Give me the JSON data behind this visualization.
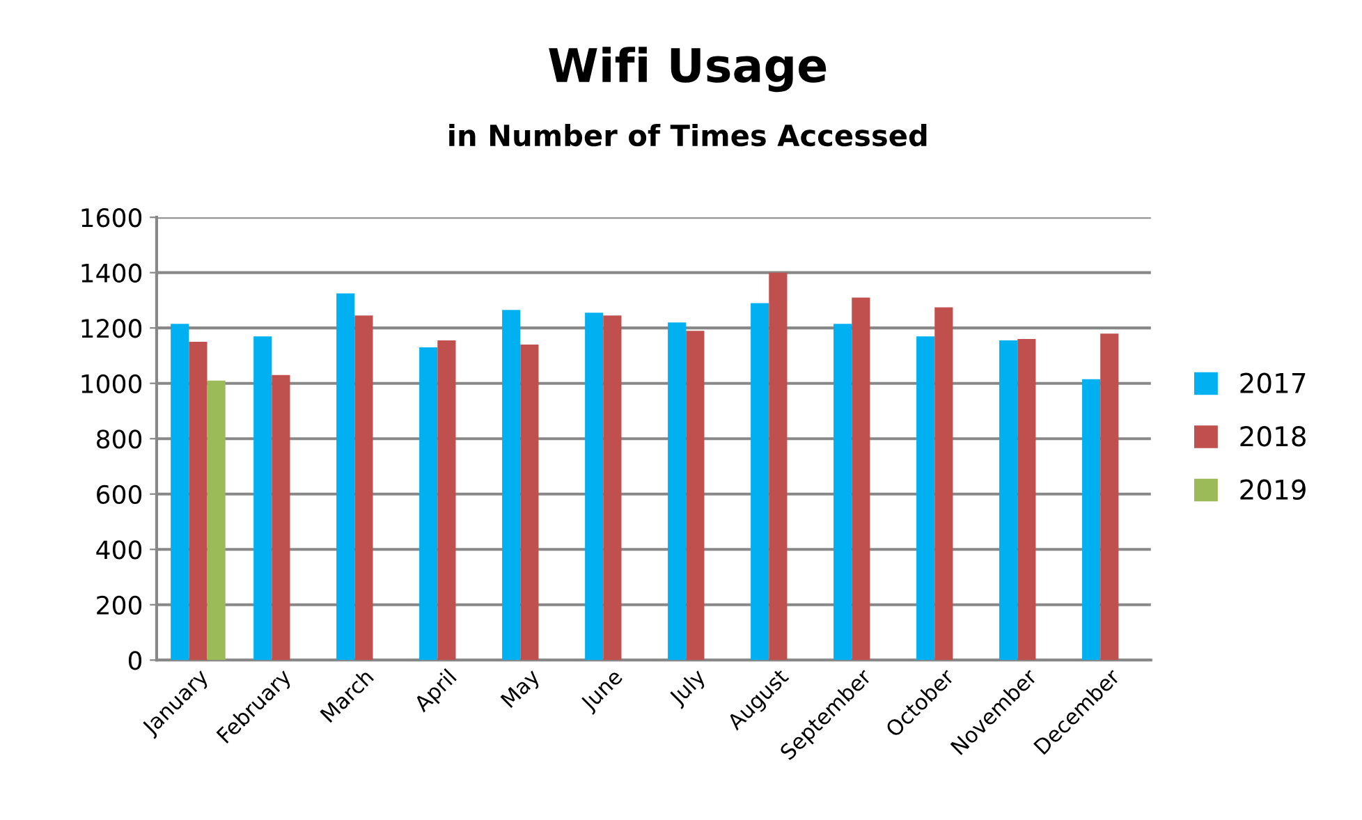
{
  "chart_data": {
    "type": "bar",
    "title": "Wifi Usage",
    "subtitle": "in Number of Times Accessed",
    "categories": [
      "January",
      "February",
      "March",
      "April",
      "May",
      "June",
      "July",
      "August",
      "September",
      "October",
      "November",
      "December"
    ],
    "series": [
      {
        "name": "2017",
        "color": "#00b0f0",
        "values": [
          1215,
          1170,
          1325,
          1130,
          1265,
          1255,
          1220,
          1290,
          1215,
          1170,
          1155,
          1015
        ]
      },
      {
        "name": "2018",
        "color": "#c0504d",
        "values": [
          1150,
          1030,
          1245,
          1155,
          1140,
          1245,
          1190,
          1400,
          1310,
          1275,
          1160,
          1180
        ]
      },
      {
        "name": "2019",
        "color": "#9bbb59",
        "values": [
          1010,
          null,
          null,
          null,
          null,
          null,
          null,
          null,
          null,
          null,
          null,
          null
        ]
      }
    ],
    "ylim": [
      0,
      1600
    ],
    "yticks": [
      0,
      200,
      400,
      600,
      800,
      1000,
      1200,
      1400,
      1600
    ],
    "grid": "y",
    "legend": "right"
  }
}
